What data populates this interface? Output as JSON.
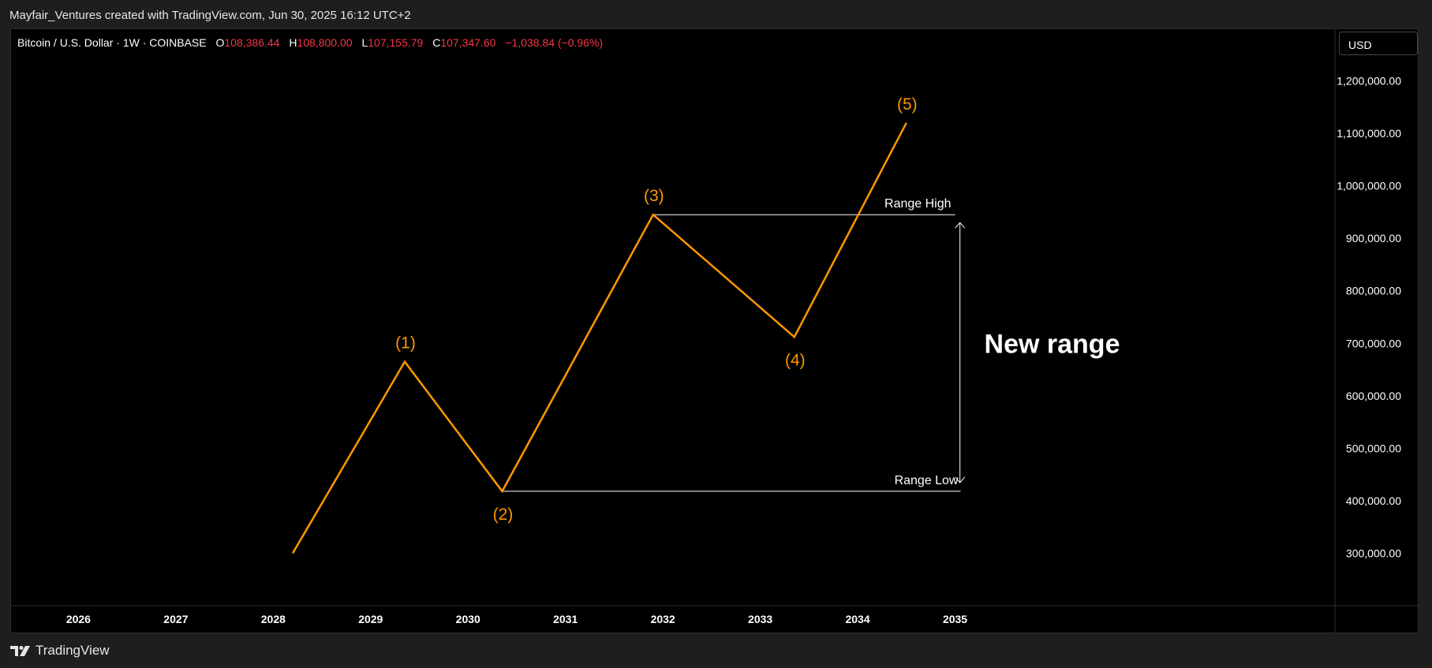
{
  "header": {
    "credit": "Mayfair_Ventures created with TradingView.com, Jun 30, 2025 16:12 UTC+2"
  },
  "legend": {
    "symbol": "Bitcoin / U.S. Dollar · 1W · COINBASE",
    "open_label": "O",
    "open": "108,386.44",
    "high_label": "H",
    "high": "108,800.00",
    "low_label": "L",
    "low": "107,155.79",
    "close_label": "C",
    "close": "107,347.60",
    "change": "−1,038.84 (−0.96%)"
  },
  "currency": "USD",
  "footer": {
    "brand": "TradingView",
    "logo_icon": "tradingview-logo-icon"
  },
  "colors": {
    "wave": "#ff9800",
    "annotation": "#ffffff",
    "negative": "#f23645"
  },
  "chart_data": {
    "type": "line",
    "x_axis": {
      "ticks": [
        "2026",
        "2027",
        "2028",
        "2029",
        "2030",
        "2031",
        "2032",
        "2033",
        "2034",
        "2035"
      ],
      "range": [
        2025.3,
        2038.9
      ]
    },
    "y_axis": {
      "ticks": [
        {
          "value": 300000,
          "label": "300,000.00"
        },
        {
          "value": 400000,
          "label": "400,000.00"
        },
        {
          "value": 500000,
          "label": "500,000.00"
        },
        {
          "value": 600000,
          "label": "600,000.00"
        },
        {
          "value": 700000,
          "label": "700,000.00"
        },
        {
          "value": 800000,
          "label": "800,000.00"
        },
        {
          "value": 900000,
          "label": "900,000.00"
        },
        {
          "value": 1000000,
          "label": "1,000,000.00"
        },
        {
          "value": 1100000,
          "label": "1,100,000.00"
        },
        {
          "value": 1200000,
          "label": "1,200,000.00"
        }
      ],
      "range": [
        200000,
        1300000
      ]
    },
    "series": [
      {
        "points": [
          {
            "x": 2028.2,
            "y": 300000,
            "label": ""
          },
          {
            "x": 2029.35,
            "y": 665000,
            "label": "(1)"
          },
          {
            "x": 2030.35,
            "y": 418000,
            "label": "(2)"
          },
          {
            "x": 2031.9,
            "y": 945000,
            "label": "(3)"
          },
          {
            "x": 2033.35,
            "y": 712000,
            "label": "(4)"
          },
          {
            "x": 2034.5,
            "y": 1120000,
            "label": "(5)"
          }
        ]
      }
    ],
    "annotations": {
      "range_high": {
        "label": "Range High",
        "value": 945000,
        "x_start": 2031.9,
        "x_end": 2035.0
      },
      "range_low": {
        "label": "Range Low",
        "value": 418000,
        "x_start": 2030.35,
        "x_end": 2035.0
      },
      "range_arrow": {
        "x": 2035.05,
        "from": 418000,
        "to": 945000
      },
      "range_text": {
        "label": "New range",
        "x": 2035.3,
        "y": 700000
      }
    }
  }
}
